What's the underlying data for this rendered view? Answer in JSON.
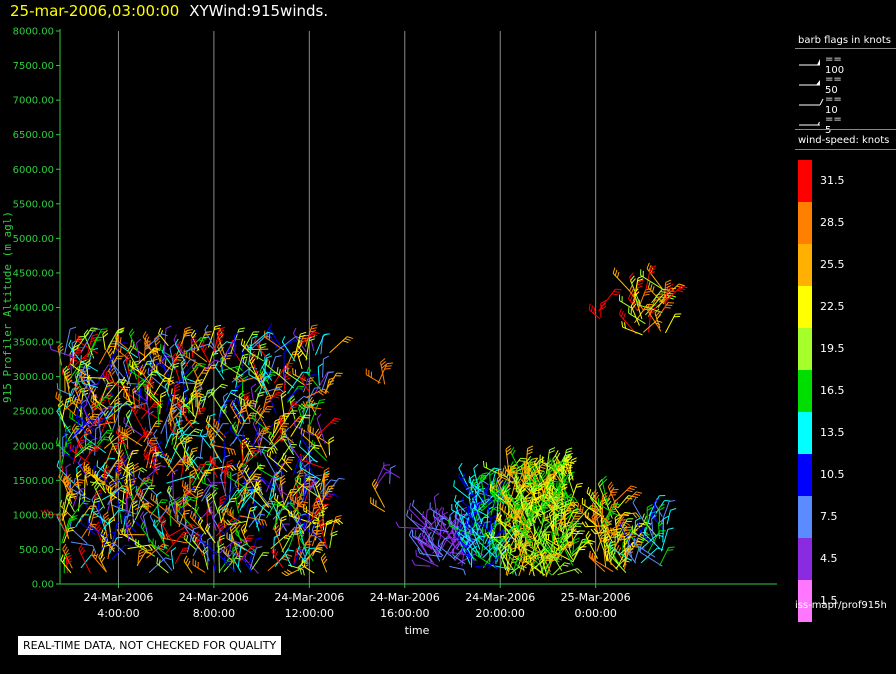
{
  "header": {
    "datetime": "25-mar-2006,03:00:00",
    "title": "XYWind:915winds."
  },
  "colors": {
    "background": "#000000",
    "axis": "#2ecc40",
    "grid": "#8a8a8a",
    "header_time": "#ffff00"
  },
  "chart_data": {
    "type": "scatter",
    "title": "XYWind:915winds.",
    "xlabel": "time",
    "ylabel": "915 Profiler Altitude (m agl)",
    "x_unit": "hours since 24-Mar-2006 00:00",
    "xlim": [
      1.55,
      31.6
    ],
    "ylim": [
      0,
      8000
    ],
    "grid": true,
    "y_ticks": [
      "0.00",
      "500.00",
      "1000.00",
      "1500.00",
      "2000.00",
      "2500.00",
      "3000.00",
      "3500.00",
      "4000.00",
      "4500.00",
      "5000.00",
      "5500.00",
      "6000.00",
      "6500.00",
      "7000.00",
      "7500.00",
      "8000.00"
    ],
    "x_ticks": [
      {
        "hour": 4,
        "line1": "24-Mar-2006",
        "line2": "4:00:00"
      },
      {
        "hour": 8,
        "line1": "24-Mar-2006",
        "line2": "8:00:00"
      },
      {
        "hour": 12,
        "line1": "24-Mar-2006",
        "line2": "12:00:00"
      },
      {
        "hour": 16,
        "line1": "24-Mar-2006",
        "line2": "16:00:00"
      },
      {
        "hour": 20,
        "line1": "24-Mar-2006",
        "line2": "20:00:00"
      },
      {
        "hour": 24,
        "line1": "25-Mar-2006",
        "line2": "0:00:00"
      }
    ],
    "marker": "wind barb",
    "clusters": [
      {
        "hour_start": 1.6,
        "hour_end": 12.9,
        "alt_min": 150,
        "alt_max": 3450,
        "speed_min": 4,
        "speed_max": 33,
        "density": 900
      },
      {
        "hour_start": 14.4,
        "hour_end": 15.2,
        "alt_min": 2850,
        "alt_max": 2950,
        "speed_min": 27,
        "speed_max": 29,
        "density": 3
      },
      {
        "hour_start": 14.4,
        "hour_end": 16.0,
        "alt_min": 1300,
        "alt_max": 1550,
        "speed_min": 4,
        "speed_max": 7,
        "density": 4
      },
      {
        "hour_start": 15.1,
        "hour_end": 15.2,
        "alt_min": 1000,
        "alt_max": 1150,
        "speed_min": 25,
        "speed_max": 27,
        "density": 2
      },
      {
        "hour_start": 16.8,
        "hour_end": 18.5,
        "alt_min": 250,
        "alt_max": 900,
        "speed_min": 3,
        "speed_max": 8,
        "density": 70
      },
      {
        "hour_start": 18.5,
        "hour_end": 20.2,
        "alt_min": 200,
        "alt_max": 1400,
        "speed_min": 8,
        "speed_max": 17,
        "density": 110
      },
      {
        "hour_start": 20.2,
        "hour_end": 23.1,
        "alt_min": 100,
        "alt_max": 1600,
        "speed_min": 15,
        "speed_max": 27,
        "density": 280
      },
      {
        "hour_start": 24.0,
        "hour_end": 25.3,
        "alt_min": 150,
        "alt_max": 1200,
        "speed_min": 17,
        "speed_max": 30,
        "density": 70
      },
      {
        "hour_start": 25.5,
        "hour_end": 27.0,
        "alt_min": 250,
        "alt_max": 1000,
        "speed_min": 6,
        "speed_max": 19,
        "density": 35
      },
      {
        "hour_start": 23.9,
        "hour_end": 24.4,
        "alt_min": 3800,
        "alt_max": 3950,
        "speed_min": 31,
        "speed_max": 34,
        "density": 3
      },
      {
        "hour_start": 25.4,
        "hour_end": 27.0,
        "alt_min": 3600,
        "alt_max": 4300,
        "speed_min": 18,
        "speed_max": 34,
        "density": 35
      }
    ]
  },
  "legend": {
    "barb_title": "barb flags in knots",
    "barbs": [
      {
        "value": 100,
        "label": "== 100"
      },
      {
        "value": 50,
        "label": "== 50"
      },
      {
        "value": 10,
        "label": "== 10"
      },
      {
        "value": 5,
        "label": "== 5"
      }
    ],
    "speed_title": "wind-speed: knots",
    "speed_bins": [
      {
        "label": "31.5",
        "color": "#ff0000"
      },
      {
        "label": "28.5",
        "color": "#ff8000"
      },
      {
        "label": "25.5",
        "color": "#ffb000"
      },
      {
        "label": "22.5",
        "color": "#ffff00"
      },
      {
        "label": "19.5",
        "color": "#a6ff2a"
      },
      {
        "label": "16.5",
        "color": "#00dd00"
      },
      {
        "label": "13.5",
        "color": "#00ffff"
      },
      {
        "label": "10.5",
        "color": "#0000ff"
      },
      {
        "label": "7.5",
        "color": "#5b8cff"
      },
      {
        "label": "4.5",
        "color": "#8a2be2"
      },
      {
        "label": "1.5",
        "color": "#ff77ff"
      }
    ],
    "footer": "iss-mapr/prof915h"
  },
  "notice": "REAL-TIME DATA, NOT CHECKED FOR QUALITY"
}
